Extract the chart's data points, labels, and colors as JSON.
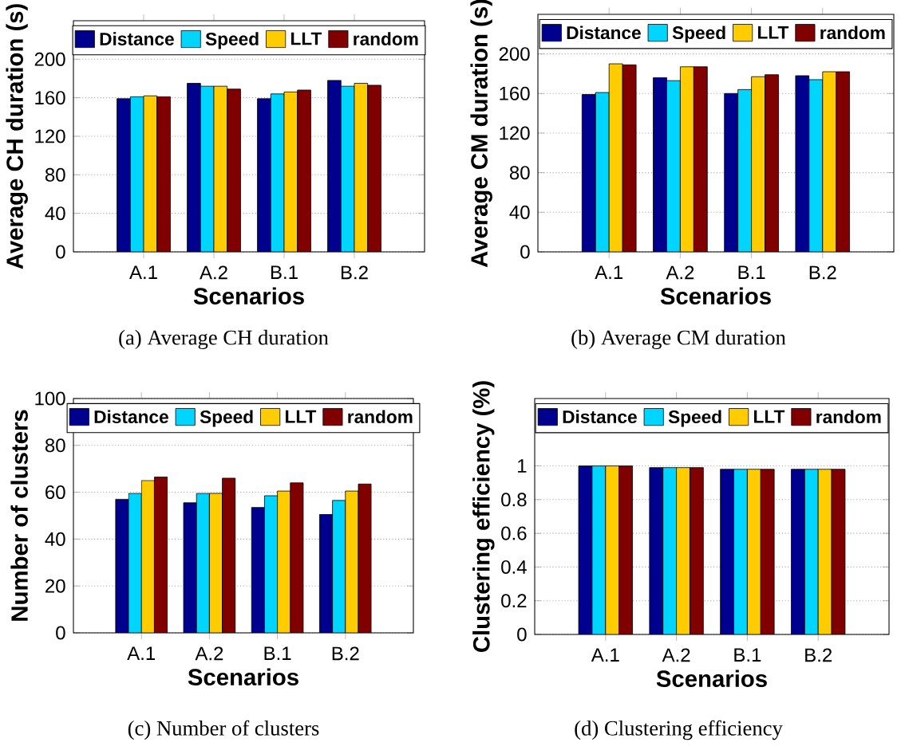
{
  "chart_data": [
    {
      "type": "bar",
      "xlabel": "Scenarios",
      "ylabel": "Average CH duration (s)",
      "categories": [
        "A.1",
        "A.2",
        "B.1",
        "B.2"
      ],
      "ylim": [
        0,
        240
      ],
      "yticks": [
        0,
        40,
        80,
        120,
        160,
        200
      ],
      "grid": "y",
      "legend": "top",
      "series": [
        {
          "name": "Distance",
          "color": "#00008f",
          "values": [
            159,
            175,
            159,
            178
          ]
        },
        {
          "name": "Speed",
          "color": "#00d5ff",
          "values": [
            161,
            172,
            164,
            172
          ]
        },
        {
          "name": "LLT",
          "color": "#ffcc00",
          "values": [
            162,
            172,
            166,
            175
          ]
        },
        {
          "name": "random",
          "color": "#800000",
          "values": [
            161,
            169,
            168,
            173
          ]
        }
      ],
      "annotations": [
        "(a)  Average CH duration"
      ]
    },
    {
      "type": "bar",
      "xlabel": "Scenarios",
      "ylabel": "Average CM duration (s)",
      "categories": [
        "A.1",
        "A.2",
        "B.1",
        "B.2"
      ],
      "ylim": [
        0,
        240
      ],
      "yticks": [
        0,
        40,
        80,
        120,
        160,
        200
      ],
      "grid": "y",
      "legend": "top",
      "series": [
        {
          "name": "Distance",
          "color": "#00008f",
          "values": [
            159,
            176,
            160,
            178
          ]
        },
        {
          "name": "Speed",
          "color": "#00d5ff",
          "values": [
            161,
            173,
            164,
            174
          ]
        },
        {
          "name": "LLT",
          "color": "#ffcc00",
          "values": [
            190,
            187,
            177,
            182
          ]
        },
        {
          "name": "random",
          "color": "#800000",
          "values": [
            189,
            187,
            179,
            182
          ]
        }
      ],
      "annotations": [
        "(b)  Average CM duration"
      ]
    },
    {
      "type": "bar",
      "xlabel": "Scenarios",
      "ylabel": "Number of clusters",
      "categories": [
        "A.1",
        "A.2",
        "B.1",
        "B.2"
      ],
      "ylim": [
        0,
        100
      ],
      "yticks": [
        0,
        20,
        40,
        60,
        80,
        100
      ],
      "grid": "y",
      "legend": "top",
      "series": [
        {
          "name": "Distance",
          "color": "#00008f",
          "values": [
            57,
            55.5,
            53.5,
            50.5
          ]
        },
        {
          "name": "Speed",
          "color": "#00d5ff",
          "values": [
            59.5,
            59.5,
            58.5,
            56.5
          ]
        },
        {
          "name": "LLT",
          "color": "#ffcc00",
          "values": [
            65,
            59.5,
            60.5,
            60.5
          ]
        },
        {
          "name": "random",
          "color": "#800000",
          "values": [
            66.5,
            66,
            64,
            63.5
          ]
        }
      ],
      "annotations": [
        "(c)  Number of clusters"
      ]
    },
    {
      "type": "bar",
      "xlabel": "Scenarios",
      "ylabel": "Clustering efficiency (%)",
      "categories": [
        "A.1",
        "A.2",
        "B.1",
        "B.2"
      ],
      "ylim": [
        0,
        1.4
      ],
      "yticks": [
        0,
        0.2,
        0.4,
        0.6,
        0.8,
        1
      ],
      "grid": "y",
      "legend": "top",
      "series": [
        {
          "name": "Distance",
          "color": "#00008f",
          "values": [
            1,
            0.99,
            0.98,
            0.98
          ]
        },
        {
          "name": "Speed",
          "color": "#00d5ff",
          "values": [
            1,
            0.99,
            0.98,
            0.98
          ]
        },
        {
          "name": "LLT",
          "color": "#ffcc00",
          "values": [
            1,
            0.99,
            0.98,
            0.98
          ]
        },
        {
          "name": "random",
          "color": "#800000",
          "values": [
            1,
            0.99,
            0.98,
            0.98
          ]
        }
      ],
      "annotations": [
        "(d)  Clustering efficiency"
      ]
    }
  ]
}
